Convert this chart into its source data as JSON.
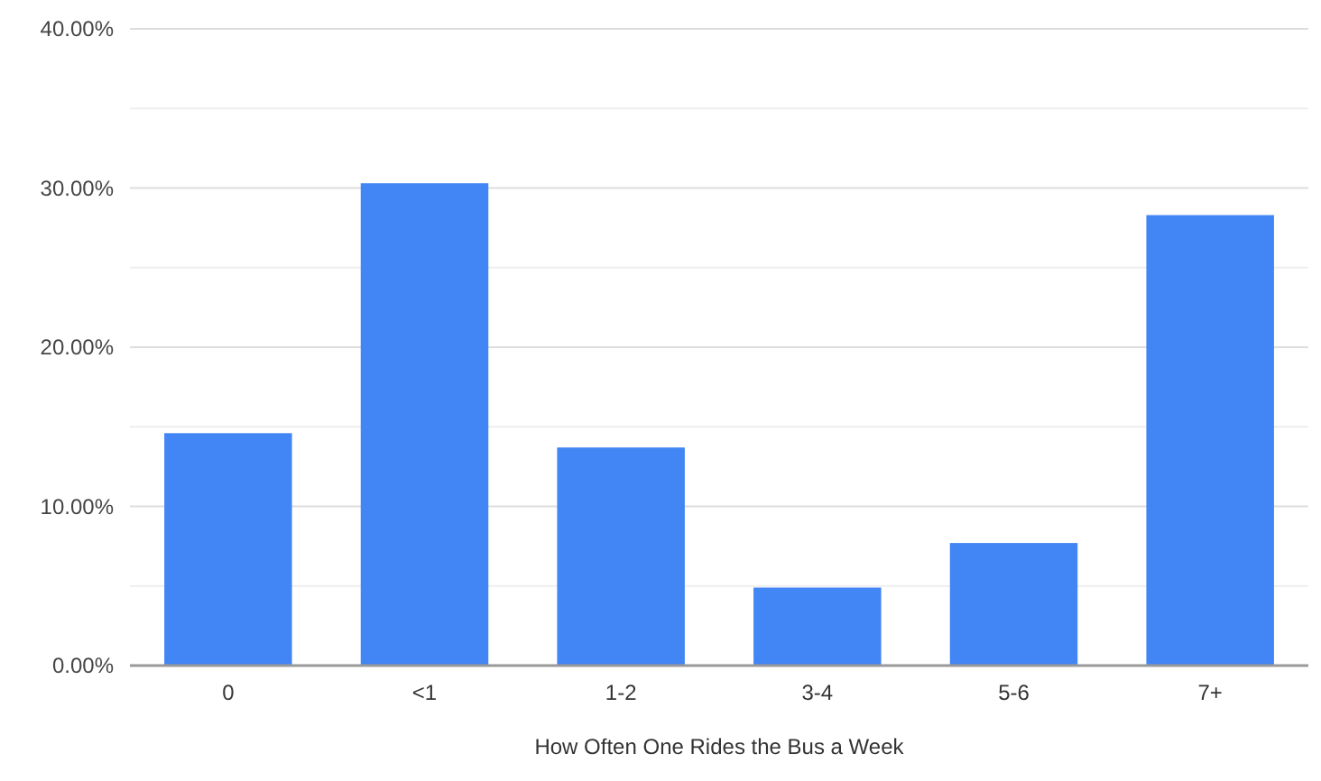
{
  "chart_data": {
    "type": "bar",
    "xlabel": "How Often One Rides the Bus a Week",
    "categories": [
      "0",
      "<1",
      "1-2",
      "3-4",
      "5-6",
      "7+"
    ],
    "values": [
      14.6,
      30.3,
      13.7,
      4.9,
      7.7,
      28.3
    ],
    "color": "#4285f4",
    "ylim": [
      0,
      40
    ],
    "yticks": [
      {
        "value": 0,
        "label": "0.00%"
      },
      {
        "value": 5,
        "label": null
      },
      {
        "value": 10,
        "label": "10.00%"
      },
      {
        "value": 15,
        "label": null
      },
      {
        "value": 20,
        "label": "20.00%"
      },
      {
        "value": 25,
        "label": null
      },
      {
        "value": 30,
        "label": "30.00%"
      },
      {
        "value": 35,
        "label": null
      },
      {
        "value": 40,
        "label": "40.00%"
      }
    ],
    "grid": true
  }
}
